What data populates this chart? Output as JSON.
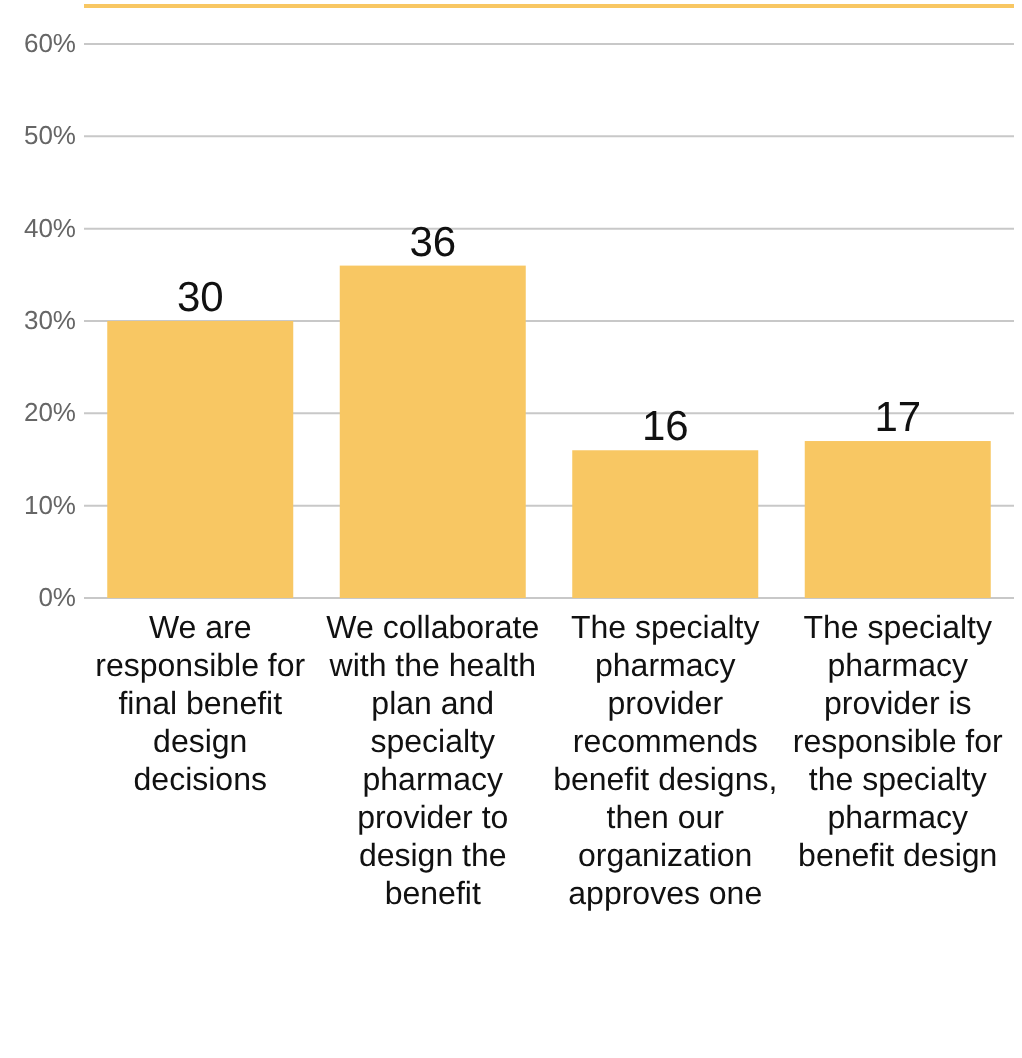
{
  "chart_data": {
    "type": "bar",
    "categories": [
      "We are responsible for final benefit design decisions",
      "We collaborate with the health plan and specialty pharmacy provider to design the benefit",
      "The specialty pharmacy provider recommends benefit designs, then our organization approves one",
      "The specialty pharmacy provider is responsible for the specialty pharmacy benefit design"
    ],
    "values": [
      30,
      36,
      16,
      17
    ],
    "color": "#f8c763",
    "ylim": [
      0,
      60
    ],
    "yticks": [
      {
        "value": 0,
        "label": "0%"
      },
      {
        "value": 10,
        "label": "10%"
      },
      {
        "value": 20,
        "label": "20%"
      },
      {
        "value": 30,
        "label": "30%"
      },
      {
        "value": 40,
        "label": "40%"
      },
      {
        "value": 50,
        "label": "50%"
      },
      {
        "value": 60,
        "label": "60%"
      }
    ],
    "grid": "y",
    "data_labels": true
  }
}
